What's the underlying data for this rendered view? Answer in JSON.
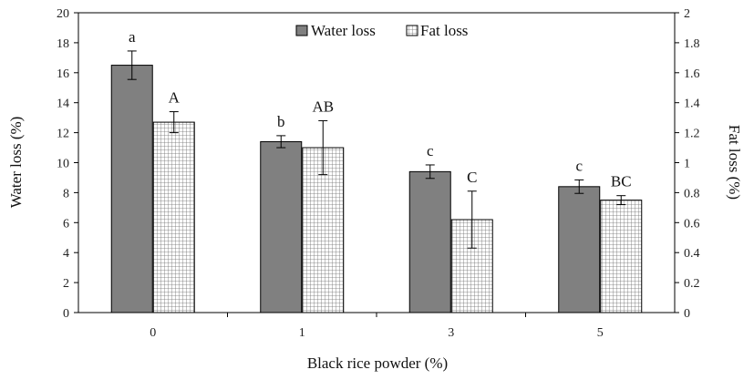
{
  "chart_data": {
    "type": "bar",
    "title": "",
    "xlabel": "Black rice powder (%)",
    "ylabel": "Water loss (%)",
    "y2label": "Fat loss (%)",
    "categories": [
      "0",
      "1",
      "3",
      "5"
    ],
    "ylim": [
      0,
      20
    ],
    "y2lim": [
      0,
      2
    ],
    "yticks": [
      "0",
      "2",
      "4",
      "6",
      "8",
      "10",
      "12",
      "14",
      "16",
      "18",
      "20"
    ],
    "y2ticks": [
      "0",
      "0.2",
      "0.4",
      "0.6",
      "0.8",
      "1",
      "1.2",
      "1.4",
      "1.6",
      "1.8",
      "2"
    ],
    "legend_position": "top-center",
    "series": [
      {
        "name": "Water loss",
        "axis": "left",
        "values": [
          16.5,
          11.4,
          9.4,
          8.4
        ],
        "errors": [
          0.95,
          0.4,
          0.45,
          0.45
        ],
        "labels": [
          "a",
          "b",
          "c",
          "c"
        ],
        "color": "#808080",
        "pattern": "solid"
      },
      {
        "name": "Fat loss",
        "axis": "right",
        "values": [
          1.27,
          1.1,
          0.62,
          0.75
        ],
        "errors": [
          0.07,
          0.18,
          0.19,
          0.03
        ],
        "labels": [
          "A",
          "AB",
          "C",
          "BC"
        ],
        "color": "#ffffff",
        "pattern": "grid"
      }
    ]
  }
}
